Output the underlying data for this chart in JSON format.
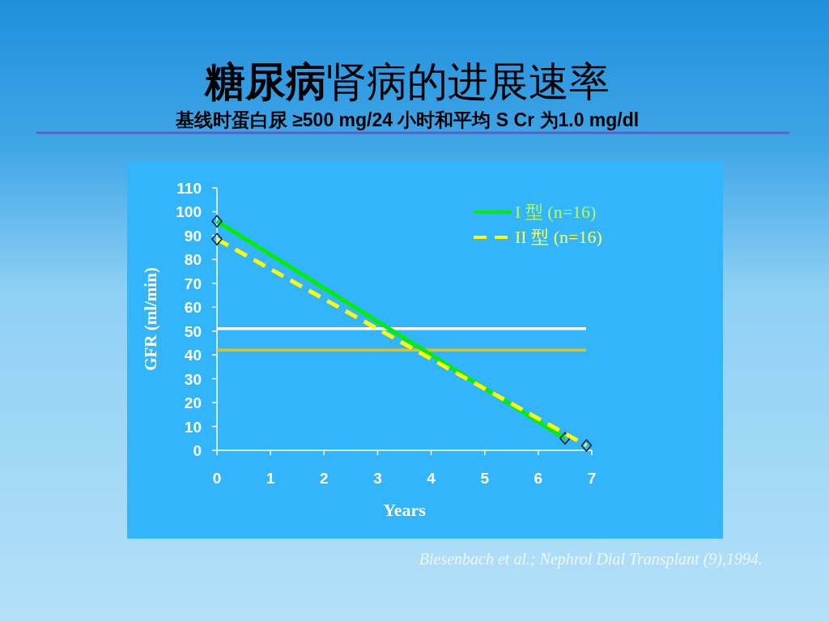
{
  "chart_data": {
    "type": "line",
    "title": "**糖尿病**肾病的进展速率",
    "subtitle": "基线时蛋白尿 ≥500 mg/24 小时和平均 S Cr 为1.0 mg/dl",
    "xlabel": "Years",
    "ylabel": "GFR (ml/min)",
    "annotations": [
      "Biesenbach et al.; Nephrol Dial Transplant (9),1994."
    ],
    "xlim": [
      0,
      7
    ],
    "ylim": [
      0,
      110
    ],
    "xticks": [
      0,
      1,
      2,
      3,
      4,
      5,
      6,
      7
    ],
    "yticks": [
      0,
      10,
      20,
      30,
      40,
      50,
      60,
      70,
      80,
      90,
      100,
      110
    ],
    "legend": "top right",
    "marker": "diamond",
    "series": [
      {
        "name": "I 型 (n=16)",
        "color": "#00ee00",
        "x": [
          0,
          6.5
        ],
        "values": [
          96,
          5
        ],
        "line_style": "solid"
      },
      {
        "name": "II 型 (n=16)",
        "color": "#ffff00",
        "x": [
          0,
          6.9
        ],
        "values": [
          88.5,
          2
        ],
        "line_style": "dashed"
      }
    ],
    "ref_lines": [
      {
        "axis": "y",
        "value": 51,
        "color": "#ffffff"
      },
      {
        "axis": "y",
        "value": 42,
        "color": "#f0c000"
      }
    ]
  }
}
